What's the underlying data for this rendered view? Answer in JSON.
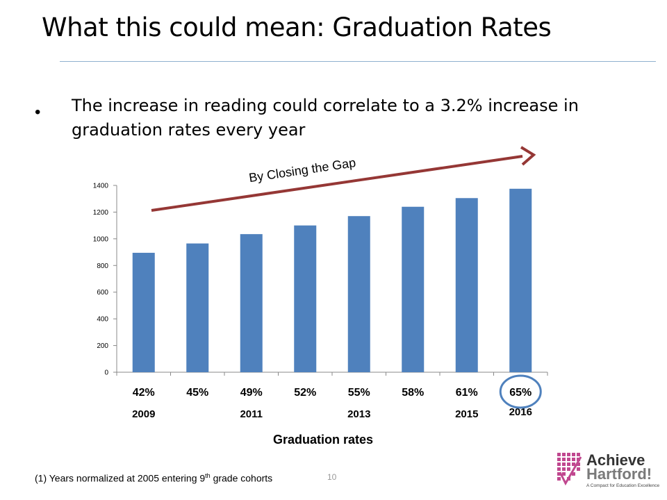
{
  "slide": {
    "title": "What this could mean:  Graduation Rates",
    "bullet": "The increase in reading  could correlate to a 3.2% increase in graduation rates every year",
    "footnote_prefix": "(1) Years normalized at 2005 entering 9",
    "footnote_sup": "th",
    "footnote_suffix": " grade cohorts",
    "page_number": "10",
    "logo": {
      "line1": "Achieve",
      "line2": "Hartford!",
      "tagline": "A Compact for Education Excellence",
      "color": "#c0478f"
    }
  },
  "chart_data": {
    "type": "bar",
    "categories": [
      "42%",
      "45%",
      "49%",
      "52%",
      "55%",
      "58%",
      "61%",
      "65%"
    ],
    "year_labels": [
      "2009",
      "",
      "2011",
      "",
      "2013",
      "",
      "2015",
      "2016"
    ],
    "values": [
      895,
      965,
      1035,
      1100,
      1170,
      1240,
      1305,
      1375
    ],
    "ylim": [
      0,
      1400
    ],
    "yticks": [
      "0",
      "200",
      "400",
      "600",
      "800",
      "1000",
      "1200",
      "1400"
    ],
    "xlabel": "Graduation rates",
    "bar_color": "#4f81bd",
    "annotation": "By Closing the Gap",
    "arrow_color": "#953735",
    "highlight_circle_color": "#4f81bd",
    "highlight_index": 7,
    "grid": false
  }
}
